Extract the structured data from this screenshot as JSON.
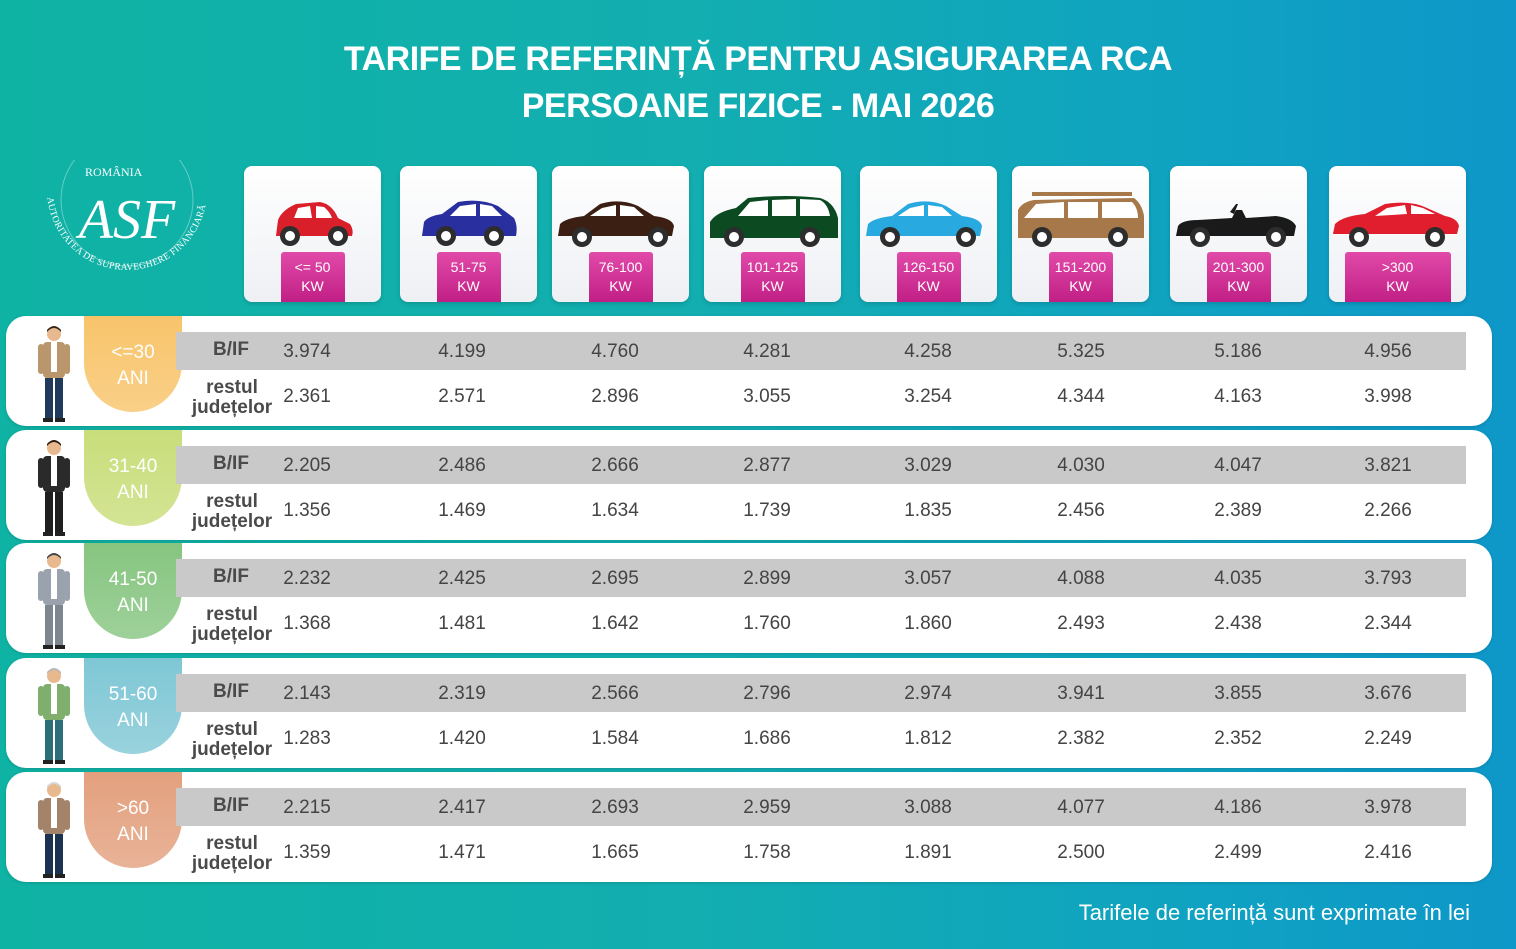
{
  "title": {
    "line1": "TARIFE DE REFERINȚĂ PENTRU ASIGURAREA RCA",
    "line2": "PERSOANE FIZICE - MAI 2026"
  },
  "logo": {
    "top_text": "ROMÂNIA",
    "ring_text": "AUTORITATEA DE SUPRAVEGHERE FINANCIARĂ",
    "monogram": "ASF"
  },
  "power_columns": [
    {
      "range": "<= 50",
      "unit": "KW",
      "car_color": "#d81f2a",
      "car_icon": "hatchback-icon"
    },
    {
      "range": "51-75",
      "unit": "KW",
      "car_color": "#2a2fa0",
      "car_icon": "crossover-icon"
    },
    {
      "range": "76-100",
      "unit": "KW",
      "car_color": "#3a1f12",
      "car_icon": "sedan-icon"
    },
    {
      "range": "101-125",
      "unit": "KW",
      "car_color": "#0c4a22",
      "car_icon": "minivan-icon"
    },
    {
      "range": "126-150",
      "unit": "KW",
      "car_color": "#28a9e0",
      "car_icon": "sedan-icon"
    },
    {
      "range": "151-200",
      "unit": "KW",
      "car_color": "#a7784a",
      "car_icon": "suv-icon"
    },
    {
      "range": "201-300",
      "unit": "KW",
      "car_color": "#1a1a1a",
      "car_icon": "convertible-icon"
    },
    {
      "range": ">300",
      "unit": "KW",
      "car_color": "#e01e2e",
      "car_icon": "sports-car-icon"
    }
  ],
  "row_labels": {
    "bif": "B/IF",
    "rest_line1": "restul",
    "rest_line2": "județelor"
  },
  "age_groups": [
    {
      "age": "<=30",
      "unit": "ANI",
      "color": "#f8c46a",
      "bif": [
        "3.974",
        "4.199",
        "4.760",
        "4.281",
        "4.258",
        "5.325",
        "5.186",
        "4.956"
      ],
      "rest": [
        "2.361",
        "2.571",
        "2.896",
        "3.055",
        "3.254",
        "4.344",
        "4.163",
        "3.998"
      ]
    },
    {
      "age": "31-40",
      "unit": "ANI",
      "color": "#c9dd7a",
      "bif": [
        "2.205",
        "2.486",
        "2.666",
        "2.877",
        "3.029",
        "4.030",
        "4.047",
        "3.821"
      ],
      "rest": [
        "1.356",
        "1.469",
        "1.634",
        "1.739",
        "1.835",
        "2.456",
        "2.389",
        "2.266"
      ]
    },
    {
      "age": "41-50",
      "unit": "ANI",
      "color": "#86c580",
      "bif": [
        "2.232",
        "2.425",
        "2.695",
        "2.899",
        "3.057",
        "4.088",
        "4.035",
        "3.793"
      ],
      "rest": [
        "1.368",
        "1.481",
        "1.642",
        "1.760",
        "1.860",
        "2.493",
        "2.438",
        "2.344"
      ]
    },
    {
      "age": "51-60",
      "unit": "ANI",
      "color": "#7fc7d5",
      "bif": [
        "2.143",
        "2.319",
        "2.566",
        "2.796",
        "2.974",
        "3.941",
        "3.855",
        "3.676"
      ],
      "rest": [
        "1.283",
        "1.420",
        "1.584",
        "1.686",
        "1.812",
        "2.382",
        "2.352",
        "2.249"
      ]
    },
    {
      "age": ">60",
      "unit": "ANI",
      "color": "#e3a07e",
      "bif": [
        "2.215",
        "2.417",
        "2.693",
        "2.959",
        "3.088",
        "4.077",
        "4.186",
        "3.978"
      ],
      "rest": [
        "1.359",
        "1.471",
        "1.665",
        "1.758",
        "1.891",
        "2.500",
        "2.499",
        "2.416"
      ]
    }
  ],
  "footer": "Tarifele de referință sunt exprimate în lei",
  "chart_data": {
    "type": "table",
    "title": "TARIFE DE REFERINȚĂ PENTRU ASIGURAREA RCA",
    "subtitle": "PERSOANE FIZICE - MAI 2026",
    "columns": [
      "<= 50 KW",
      "51-75 KW",
      "76-100 KW",
      "101-125 KW",
      "126-150 KW",
      "151-200 KW",
      "201-300 KW",
      ">300 KW"
    ],
    "rows": [
      {
        "age": "<=30 ANI",
        "B/IF": [
          3974,
          4199,
          4760,
          4281,
          4258,
          5325,
          5186,
          4956
        ],
        "restul județelor": [
          2361,
          2571,
          2896,
          3055,
          3254,
          4344,
          4163,
          3998
        ]
      },
      {
        "age": "31-40 ANI",
        "B/IF": [
          2205,
          2486,
          2666,
          2877,
          3029,
          4030,
          4047,
          3821
        ],
        "restul județelor": [
          1356,
          1469,
          1634,
          1739,
          1835,
          2456,
          2389,
          2266
        ]
      },
      {
        "age": "41-50 ANI",
        "B/IF": [
          2232,
          2425,
          2695,
          2899,
          3057,
          4088,
          4035,
          3793
        ],
        "restul județelor": [
          1368,
          1481,
          1642,
          1760,
          1860,
          2493,
          2438,
          2344
        ]
      },
      {
        "age": "51-60 ANI",
        "B/IF": [
          2143,
          2319,
          2566,
          2796,
          2974,
          3941,
          3855,
          3676
        ],
        "restul județelor": [
          1283,
          1420,
          1584,
          1686,
          1812,
          2382,
          2352,
          2249
        ]
      },
      {
        "age": ">60 ANI",
        "B/IF": [
          2215,
          2417,
          2693,
          2959,
          3088,
          4077,
          4186,
          3978
        ],
        "restul județelor": [
          1359,
          1471,
          1665,
          1758,
          1891,
          2500,
          2499,
          2416
        ]
      }
    ],
    "note": "Tarifele de referință sunt exprimate în lei"
  }
}
